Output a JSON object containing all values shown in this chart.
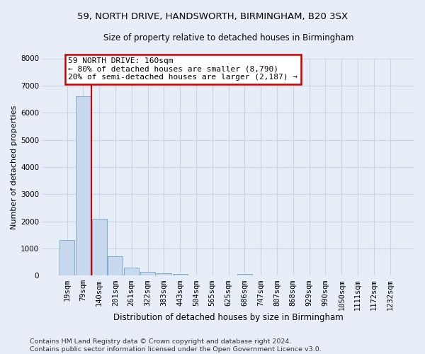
{
  "title1": "59, NORTH DRIVE, HANDSWORTH, BIRMINGHAM, B20 3SX",
  "title2": "Size of property relative to detached houses in Birmingham",
  "xlabel": "Distribution of detached houses by size in Birmingham",
  "ylabel": "Number of detached properties",
  "footnote": "Contains HM Land Registry data © Crown copyright and database right 2024.\nContains public sector information licensed under the Open Government Licence v3.0.",
  "categories": [
    "19sqm",
    "79sqm",
    "140sqm",
    "201sqm",
    "261sqm",
    "322sqm",
    "383sqm",
    "443sqm",
    "504sqm",
    "565sqm",
    "625sqm",
    "686sqm",
    "747sqm",
    "807sqm",
    "868sqm",
    "929sqm",
    "990sqm",
    "1050sqm",
    "1111sqm",
    "1172sqm",
    "1232sqm"
  ],
  "values": [
    1300,
    6600,
    2100,
    700,
    300,
    125,
    75,
    60,
    0,
    0,
    0,
    60,
    0,
    0,
    0,
    0,
    0,
    0,
    0,
    0,
    0
  ],
  "bar_color": "#c8d8ed",
  "bar_edge_color": "#7aadd4",
  "vline_color": "#cc0000",
  "annotation_line1": "59 NORTH DRIVE: 160sqm",
  "annotation_line2": "← 80% of detached houses are smaller (8,790)",
  "annotation_line3": "20% of semi-detached houses are larger (2,187) →",
  "annotation_box_facecolor": "white",
  "annotation_box_edgecolor": "#cc0000",
  "ylim": [
    0,
    8000
  ],
  "yticks": [
    0,
    1000,
    2000,
    3000,
    4000,
    5000,
    6000,
    7000,
    8000
  ],
  "bg_color": "#e8eef8",
  "grid_color": "#c8d4e8",
  "title1_fontsize": 9.5,
  "title2_fontsize": 8.5,
  "xlabel_fontsize": 8.5,
  "ylabel_fontsize": 8,
  "tick_fontsize": 7.5,
  "annotation_fontsize": 8,
  "footnote_fontsize": 6.8,
  "vline_x": 1.5
}
